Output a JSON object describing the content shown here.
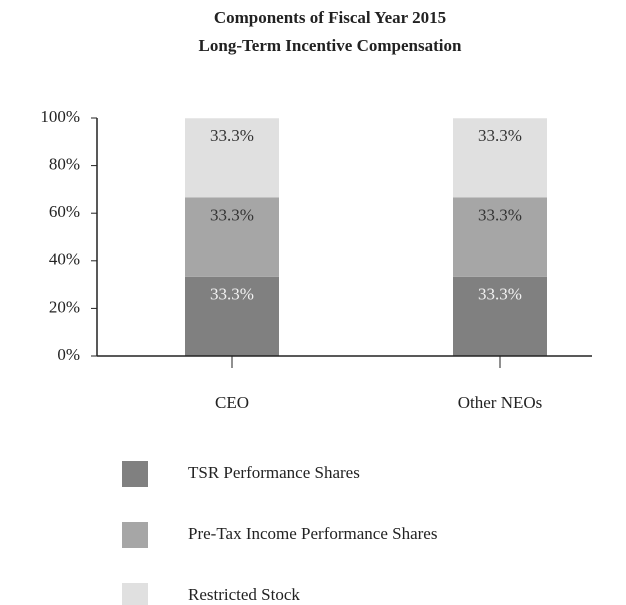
{
  "chart_data": {
    "type": "stacked_bar",
    "title": [
      "Components of Fiscal Year 2015",
      "Long-Term Incentive Compensation"
    ],
    "categories": [
      "CEO",
      "Other NEOs"
    ],
    "series": [
      {
        "name": "TSR Performance Shares",
        "color": "#808080",
        "label_color": "#f2f2f2",
        "values": [
          33.3,
          33.3
        ],
        "value_labels": [
          "33.3%",
          "33.3%"
        ]
      },
      {
        "name": "Pre-Tax Income Performance Shares",
        "color": "#a6a6a6",
        "label_color": "#333333",
        "values": [
          33.3,
          33.3
        ],
        "value_labels": [
          "33.3%",
          "33.3%"
        ]
      },
      {
        "name": "Restricted Stock",
        "color": "#e0e0e0",
        "label_color": "#333333",
        "values": [
          33.3,
          33.3
        ],
        "value_labels": [
          "33.3%",
          "33.3%"
        ]
      }
    ],
    "ylim": [
      0,
      100
    ],
    "yticks": [
      {
        "value": 0,
        "label": "0%"
      },
      {
        "value": 20,
        "label": "20%"
      },
      {
        "value": 40,
        "label": "40%"
      },
      {
        "value": 60,
        "label": "60%"
      },
      {
        "value": 80,
        "label": "80%"
      },
      {
        "value": 100,
        "label": "100%"
      }
    ],
    "legend": "bottom"
  }
}
